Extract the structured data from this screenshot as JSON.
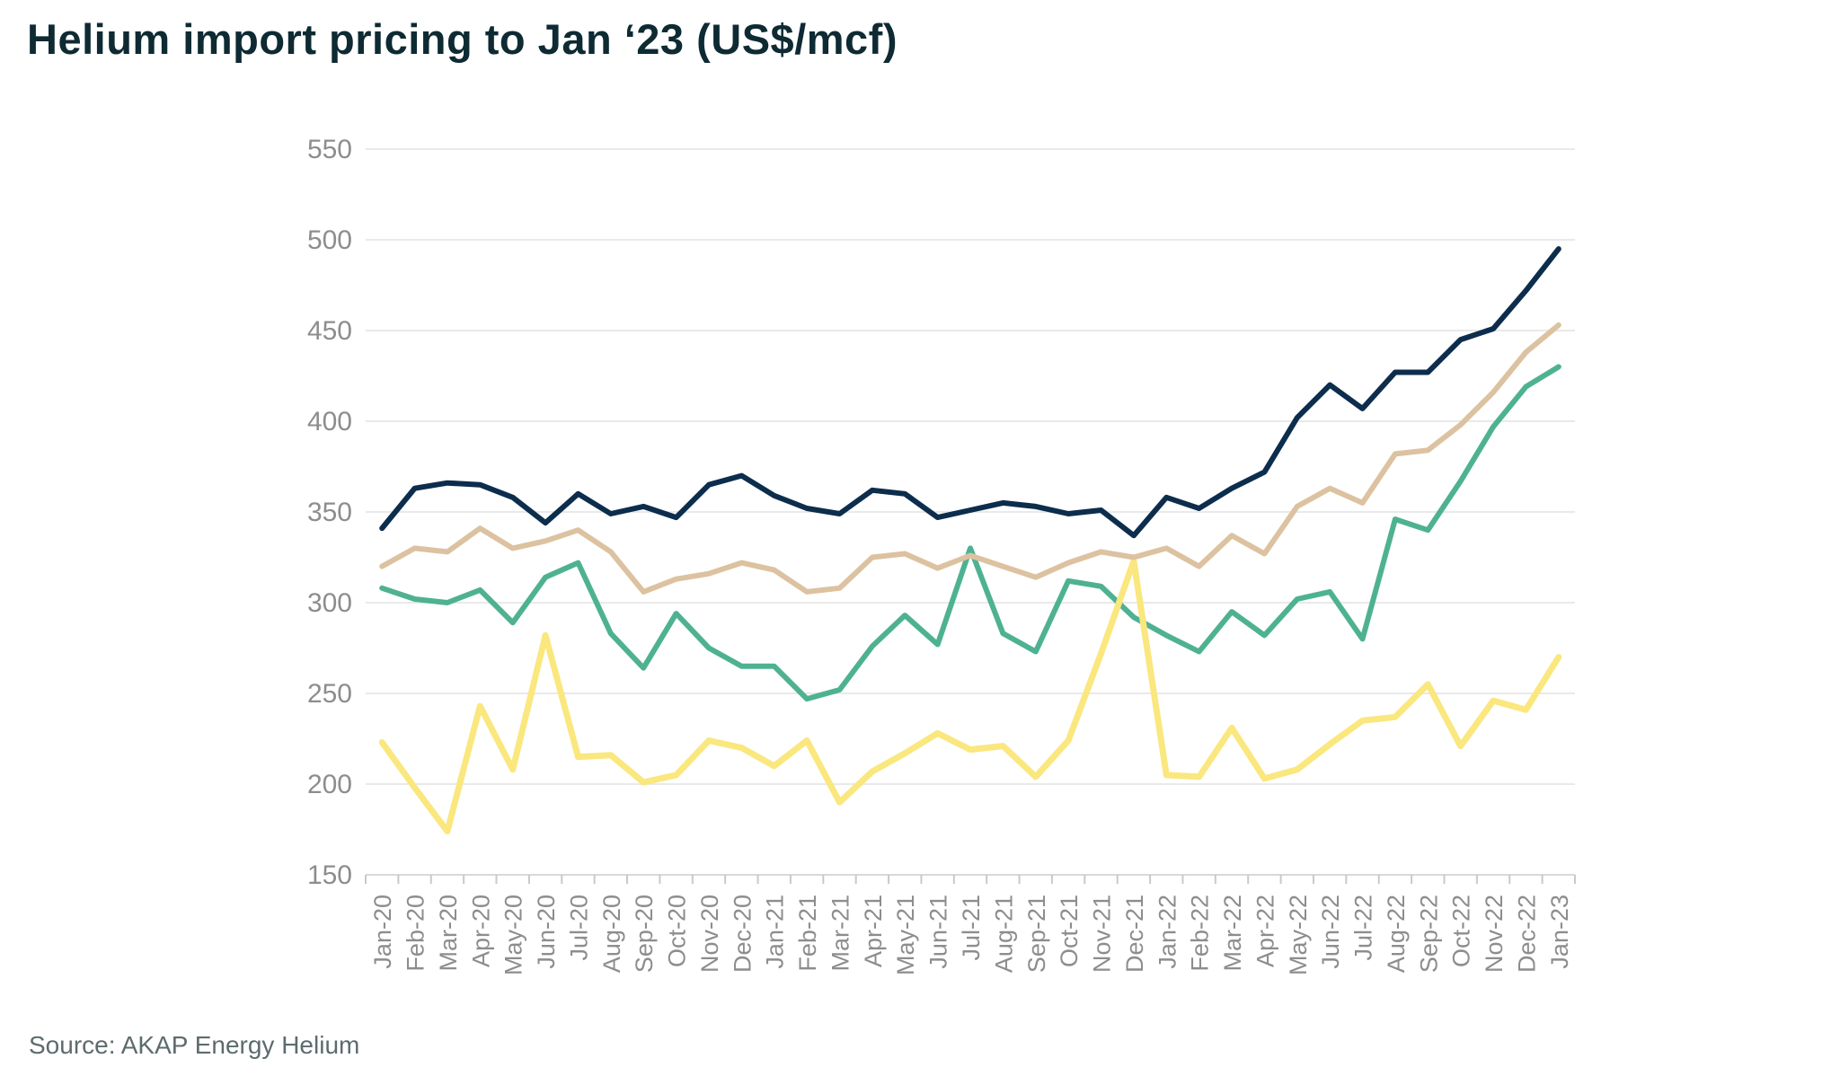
{
  "page": {
    "title": "Helium import pricing to Jan ‘23 (US$/mcf)",
    "source": "Source: AKAP Energy Helium"
  },
  "chart_data": {
    "type": "line",
    "title": "Helium import pricing to Jan ‘23 (US$/mcf)",
    "xlabel": "",
    "ylabel": "",
    "ylim": [
      150,
      550
    ],
    "y_ticks": [
      550,
      500,
      450,
      400,
      350,
      300,
      250,
      200,
      150
    ],
    "grid": "horizontal",
    "legend": "none",
    "categories": [
      "Jan-20",
      "Feb-20",
      "Mar-20",
      "Apr-20",
      "May-20",
      "Jun-20",
      "Jul-20",
      "Aug-20",
      "Sep-20",
      "Oct-20",
      "Nov-20",
      "Dec-20",
      "Jan-21",
      "Feb-21",
      "Mar-21",
      "Apr-21",
      "May-21",
      "Jun-21",
      "Jul-21",
      "Aug-21",
      "Sep-21",
      "Oct-21",
      "Nov-21",
      "Dec-21",
      "Jan-22",
      "Feb-22",
      "Mar-22",
      "Apr-22",
      "May-22",
      "Jun-22",
      "Jul-22",
      "Aug-22",
      "Sep-22",
      "Oct-22",
      "Nov-22",
      "Dec-22",
      "Jan-23"
    ],
    "series": [
      {
        "name": "green",
        "color": "#4eb292",
        "stroke_width": 6,
        "values": [
          308,
          302,
          300,
          307,
          289,
          314,
          322,
          283,
          264,
          294,
          275,
          265,
          265,
          247,
          252,
          276,
          293,
          277,
          330,
          283,
          273,
          312,
          309,
          292,
          282,
          273,
          295,
          282,
          302,
          306,
          280,
          346,
          340,
          367,
          397,
          419,
          430
        ]
      },
      {
        "name": "yellow",
        "color": "#fae77e",
        "stroke_width": 7,
        "values": [
          223,
          198,
          174,
          243,
          208,
          282,
          215,
          216,
          201,
          205,
          224,
          220,
          210,
          224,
          190,
          207,
          217,
          228,
          219,
          221,
          204,
          224,
          272,
          323,
          205,
          204,
          231,
          203,
          208,
          222,
          235,
          237,
          255,
          221,
          246,
          241,
          270
        ]
      },
      {
        "name": "tan",
        "color": "#dcc2a0",
        "stroke_width": 6,
        "values": [
          320,
          330,
          328,
          341,
          330,
          334,
          340,
          328,
          306,
          313,
          316,
          322,
          318,
          306,
          308,
          325,
          327,
          319,
          326,
          320,
          314,
          322,
          328,
          325,
          330,
          320,
          337,
          327,
          353,
          363,
          355,
          382,
          384,
          398,
          416,
          438,
          453
        ]
      },
      {
        "name": "navy",
        "color": "#0d2d4d",
        "stroke_width": 6,
        "values": [
          341,
          363,
          366,
          365,
          358,
          344,
          360,
          349,
          353,
          347,
          365,
          370,
          359,
          352,
          349,
          362,
          360,
          347,
          351,
          355,
          353,
          349,
          351,
          337,
          358,
          352,
          363,
          372,
          402,
          420,
          407,
          427,
          427,
          445,
          451,
          472,
          495
        ]
      }
    ]
  },
  "style": {
    "grid_color": "#e9e9e9",
    "axis_color": "#d9d9d9",
    "tick_color": "#c9c9c9",
    "label_color": "#8d8d8d",
    "title_color": "#0e2a33",
    "source_color": "#5d6b6e"
  }
}
